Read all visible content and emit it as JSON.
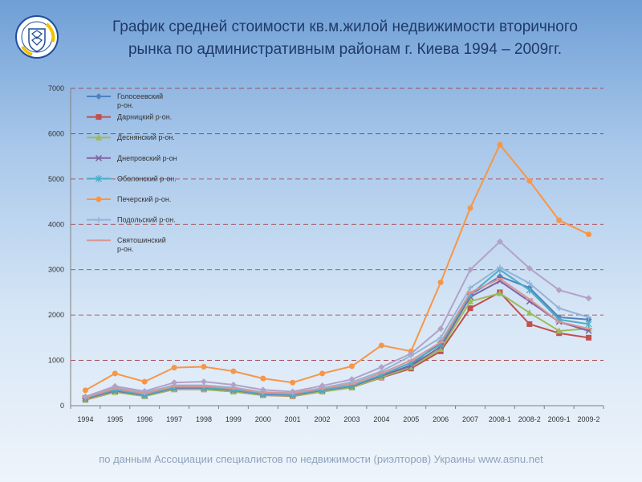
{
  "header": {
    "title_line1": "График средней  стоимости кв.м.жилой недвижимости вторичного",
    "title_line2": "рынка по административным районам г. Киева 1994 – 2009гг."
  },
  "footer": {
    "source": "по данным Ассоциации специалистов по недвижимости (риэлторов) Украины www.asnu.net"
  },
  "logo": {
    "icon": "association-emblem-icon",
    "colors": [
      "#1f4e9a",
      "#f2c300"
    ]
  },
  "chart_data": {
    "type": "line",
    "categories": [
      "1994",
      "1995",
      "1996",
      "1997",
      "1998",
      "1999",
      "2000",
      "2001",
      "2002",
      "2003",
      "2004",
      "2005",
      "2006",
      "2007",
      "2008-1",
      "2008-2",
      "2009-1",
      "2009-2"
    ],
    "ylim": [
      0,
      7000
    ],
    "yticks": [
      "0",
      "1000",
      "2000",
      "3000",
      "4000",
      "5000",
      "6000",
      "7000"
    ],
    "grid": true,
    "legend_position": "top-left",
    "series": [
      {
        "name": "Голосеевский р-он.",
        "color": "#4f81bd",
        "marker": "diamond",
        "values": [
          150,
          320,
          220,
          380,
          380,
          330,
          240,
          230,
          330,
          420,
          650,
          900,
          1400,
          2450,
          2850,
          2600,
          1950,
          1900
        ]
      },
      {
        "name": "Дарницкий р-он.",
        "color": "#c0504d",
        "marker": "square",
        "values": [
          130,
          300,
          210,
          360,
          360,
          310,
          230,
          210,
          310,
          400,
          620,
          820,
          1200,
          2150,
          2500,
          1800,
          1600,
          1500
        ]
      },
      {
        "name": "Деснянский р-он.",
        "color": "#9bbb59",
        "marker": "triangle",
        "values": [
          140,
          300,
          210,
          360,
          360,
          310,
          230,
          220,
          310,
          400,
          630,
          850,
          1250,
          2300,
          2480,
          2050,
          1650,
          1700
        ]
      },
      {
        "name": "Днепровский р-он",
        "color": "#8064a2",
        "marker": "x",
        "values": [
          160,
          330,
          230,
          390,
          390,
          340,
          250,
          240,
          340,
          430,
          660,
          880,
          1300,
          2400,
          2750,
          2300,
          1850,
          1650
        ]
      },
      {
        "name": "Оболонский р-он.",
        "color": "#4bacc6",
        "marker": "star",
        "values": [
          170,
          350,
          240,
          400,
          400,
          350,
          260,
          250,
          350,
          440,
          680,
          950,
          1350,
          2450,
          3000,
          2550,
          1900,
          1800
        ]
      },
      {
        "name": "Печерский р-он.",
        "color": "#f79646",
        "marker": "circle",
        "values": [
          340,
          710,
          530,
          840,
          860,
          760,
          600,
          510,
          710,
          870,
          1330,
          1200,
          2720,
          4360,
          5760,
          4960,
          4090,
          3780
        ]
      },
      {
        "name": "Подольский р-он.",
        "color": "#95b3d7",
        "marker": "plus",
        "values": [
          190,
          400,
          290,
          450,
          450,
          400,
          300,
          280,
          390,
          520,
          760,
          1100,
          1500,
          2600,
          3050,
          2700,
          2150,
          1950
        ]
      },
      {
        "name": "Святошинский р-он.",
        "color": "#d99694",
        "marker": "dash",
        "values": [
          180,
          380,
          270,
          430,
          430,
          380,
          290,
          270,
          380,
          480,
          720,
          1000,
          1400,
          2500,
          2800,
          2350,
          1850,
          1700
        ]
      },
      {
        "name": "",
        "color": "#b3a2c7",
        "marker": "diamond",
        "values": [
          200,
          430,
          320,
          510,
          530,
          460,
          350,
          310,
          440,
          580,
          850,
          1150,
          1700,
          3000,
          3620,
          3030,
          2550,
          2370
        ]
      }
    ]
  }
}
